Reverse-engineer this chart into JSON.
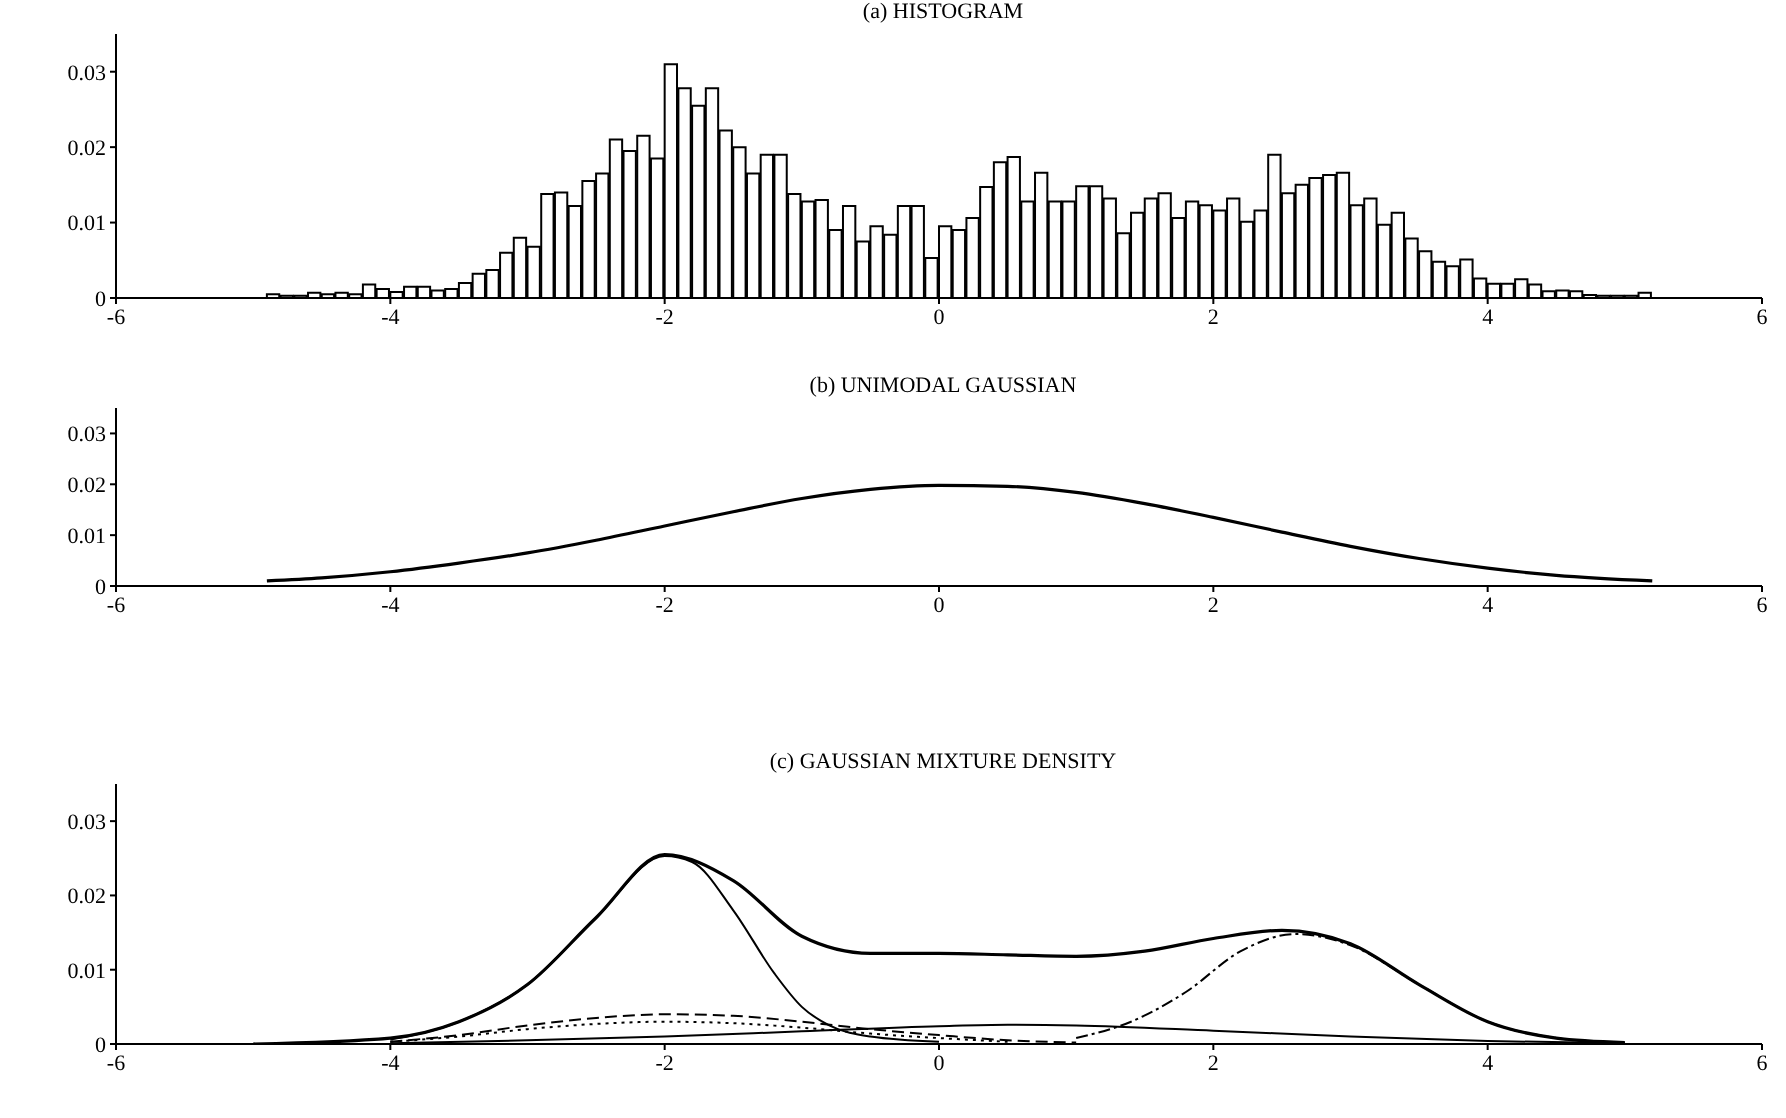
{
  "chart_data": [
    {
      "type": "histogram",
      "title": "(a) HISTOGRAM",
      "color": "#ffffff",
      "xlim": [
        -6,
        6
      ],
      "xticks": [
        -6,
        -4,
        -2,
        0,
        2,
        4,
        6
      ],
      "ylim": [
        0,
        0.035
      ],
      "yticks": [
        0,
        0.01,
        0.02,
        0.03
      ],
      "bins": [
        -4.9,
        -4.8,
        -4.7,
        -4.6,
        -4.5,
        -4.4,
        -4.3,
        -4.2,
        -4.1,
        -4.0,
        -3.9,
        -3.8,
        -3.7,
        -3.6,
        -3.5,
        -3.4,
        -3.3,
        -3.2,
        -3.1,
        -3.0,
        -2.9,
        -2.8,
        -2.7,
        -2.6,
        -2.5,
        -2.4,
        -2.3,
        -2.2,
        -2.1,
        -2.0,
        -1.9,
        -1.8,
        -1.7,
        -1.6,
        -1.5,
        -1.4,
        -1.3,
        -1.2,
        -1.1,
        -1.0,
        -0.9,
        -0.8,
        -0.7,
        -0.6,
        -0.5,
        -0.4,
        -0.3,
        -0.2,
        -0.1,
        0.0,
        0.1,
        0.2,
        0.3,
        0.4,
        0.5,
        0.6,
        0.7,
        0.8,
        0.9,
        1.0,
        1.1,
        1.2,
        1.3,
        1.4,
        1.5,
        1.6,
        1.7,
        1.8,
        1.9,
        2.0,
        2.1,
        2.2,
        2.3,
        2.4,
        2.5,
        2.6,
        2.7,
        2.8,
        2.9,
        3.0,
        3.1,
        3.2,
        3.3,
        3.4,
        3.5,
        3.6,
        3.7,
        3.8,
        3.9,
        4.0,
        4.1,
        4.2,
        4.3,
        4.4,
        4.5,
        4.6,
        4.7,
        4.8,
        4.9,
        5.0,
        5.1,
        5.2
      ],
      "values": [
        0.0005,
        0.0003,
        0.0003,
        0.0007,
        0.0005,
        0.0007,
        0.0005,
        0.0018,
        0.0012,
        0.0008,
        0.0015,
        0.0015,
        0.001,
        0.0012,
        0.002,
        0.0032,
        0.0037,
        0.006,
        0.008,
        0.0068,
        0.0138,
        0.014,
        0.0122,
        0.0155,
        0.0165,
        0.021,
        0.0195,
        0.0215,
        0.0185,
        0.031,
        0.0278,
        0.0255,
        0.0278,
        0.0222,
        0.02,
        0.0165,
        0.019,
        0.019,
        0.0138,
        0.0128,
        0.013,
        0.009,
        0.0122,
        0.0075,
        0.0095,
        0.0084,
        0.0122,
        0.0122,
        0.0053,
        0.0095,
        0.009,
        0.0106,
        0.0147,
        0.018,
        0.0187,
        0.0128,
        0.0166,
        0.0128,
        0.0128,
        0.0148,
        0.0148,
        0.0132,
        0.0086,
        0.0113,
        0.0132,
        0.0139,
        0.0106,
        0.0128,
        0.0123,
        0.0116,
        0.0132,
        0.0101,
        0.0116,
        0.019,
        0.0139,
        0.015,
        0.0159,
        0.0163,
        0.0166,
        0.0123,
        0.0132,
        0.0097,
        0.0113,
        0.0079,
        0.0062,
        0.0048,
        0.0042,
        0.0051,
        0.0026,
        0.0019,
        0.0019,
        0.0025,
        0.0018,
        0.0009,
        0.001,
        0.0009,
        0.0004,
        0.0003,
        0.0003,
        0.0003,
        0.0007
      ]
    },
    {
      "type": "line",
      "title": "(b) UNIMODAL GAUSSIAN",
      "xlim": [
        -6,
        6
      ],
      "xticks": [
        -6,
        -4,
        -2,
        0,
        2,
        4,
        6
      ],
      "ylim": [
        0,
        0.035
      ],
      "yticks": [
        0,
        0.01,
        0.02,
        0.03
      ],
      "marker": "none",
      "line_style": "solid",
      "series": [
        {
          "color": "#000000",
          "x": [
            -4.9,
            -4.5,
            -4,
            -3.5,
            -3,
            -2.5,
            -2,
            -1.5,
            -1,
            -0.5,
            0,
            0.5,
            1,
            1.5,
            2,
            2.5,
            3,
            3.5,
            4,
            4.5,
            5.2
          ],
          "values": [
            0.001,
            0.0016,
            0.0028,
            0.0045,
            0.0065,
            0.009,
            0.0118,
            0.0146,
            0.0172,
            0.019,
            0.0198,
            0.0196,
            0.0184,
            0.0162,
            0.0135,
            0.0106,
            0.0078,
            0.0054,
            0.0035,
            0.0021,
            0.001
          ]
        }
      ]
    },
    {
      "type": "line",
      "title": "(c) GAUSSIAN MIXTURE DENSITY",
      "xlim": [
        -6,
        6
      ],
      "xticks": [
        -6,
        -4,
        -2,
        0,
        2,
        4,
        6
      ],
      "ylim": [
        0,
        0.035
      ],
      "yticks": [
        0,
        0.01,
        0.02,
        0.03
      ],
      "marker": "none",
      "series": [
        {
          "color": "#000000",
          "line_style": "solid",
          "x": [
            -5,
            -4,
            -3.5,
            -3,
            -2.5,
            -2,
            -1.5,
            -1,
            -0.5,
            0,
            0.5,
            1,
            1.5,
            2,
            2.5,
            3,
            3.5,
            4,
            4.5,
            5
          ],
          "values": [
            0,
            0.0008,
            0.003,
            0.008,
            0.017,
            0.0255,
            0.022,
            0.0145,
            0.0122,
            0.0122,
            0.012,
            0.0118,
            0.0125,
            0.0142,
            0.0153,
            0.0135,
            0.008,
            0.003,
            0.0008,
            0.0002
          ]
        },
        {
          "color": "#000000",
          "line_style": "solid",
          "x": [
            -4,
            -3.5,
            -3,
            -2.5,
            -2,
            -1.8,
            -1.5,
            -1.2,
            -1,
            -0.8,
            -0.5,
            0
          ],
          "values": [
            0.0006,
            0.003,
            0.008,
            0.017,
            0.0253,
            0.0245,
            0.018,
            0.0095,
            0.005,
            0.0025,
            0.001,
            0.0003
          ]
        },
        {
          "color": "#000000",
          "line_style": "dashdot",
          "x": [
            1,
            1.4,
            1.8,
            2.2,
            2.6,
            3,
            3.5,
            4,
            4.5,
            5
          ],
          "values": [
            0.0008,
            0.003,
            0.007,
            0.0125,
            0.0148,
            0.0133,
            0.008,
            0.003,
            0.0008,
            0.0001
          ]
        },
        {
          "color": "#000000",
          "line_style": "dashed",
          "x": [
            -4,
            -3.5,
            -3,
            -2.5,
            -2,
            -1.5,
            -1,
            -0.5,
            0,
            0.5,
            1
          ],
          "values": [
            0.0003,
            0.0012,
            0.0025,
            0.0035,
            0.004,
            0.0038,
            0.003,
            0.002,
            0.0012,
            0.0005,
            0.0002
          ]
        },
        {
          "color": "#000000",
          "line_style": "dotted",
          "x": [
            -4,
            -3.5,
            -3,
            -2.5,
            -2,
            -1.5,
            -1,
            -0.5,
            0,
            0.5
          ],
          "values": [
            0.0003,
            0.001,
            0.002,
            0.0027,
            0.003,
            0.0028,
            0.0022,
            0.0014,
            0.0008,
            0.0003
          ]
        },
        {
          "color": "#000000",
          "line_style": "solid",
          "x": [
            -4,
            -3,
            -2,
            -1,
            0,
            0.5,
            1,
            2,
            3,
            4,
            5
          ],
          "values": [
            0.0001,
            0.0005,
            0.001,
            0.0017,
            0.0024,
            0.0026,
            0.0025,
            0.0018,
            0.001,
            0.0004,
            0.0001
          ]
        }
      ]
    }
  ]
}
